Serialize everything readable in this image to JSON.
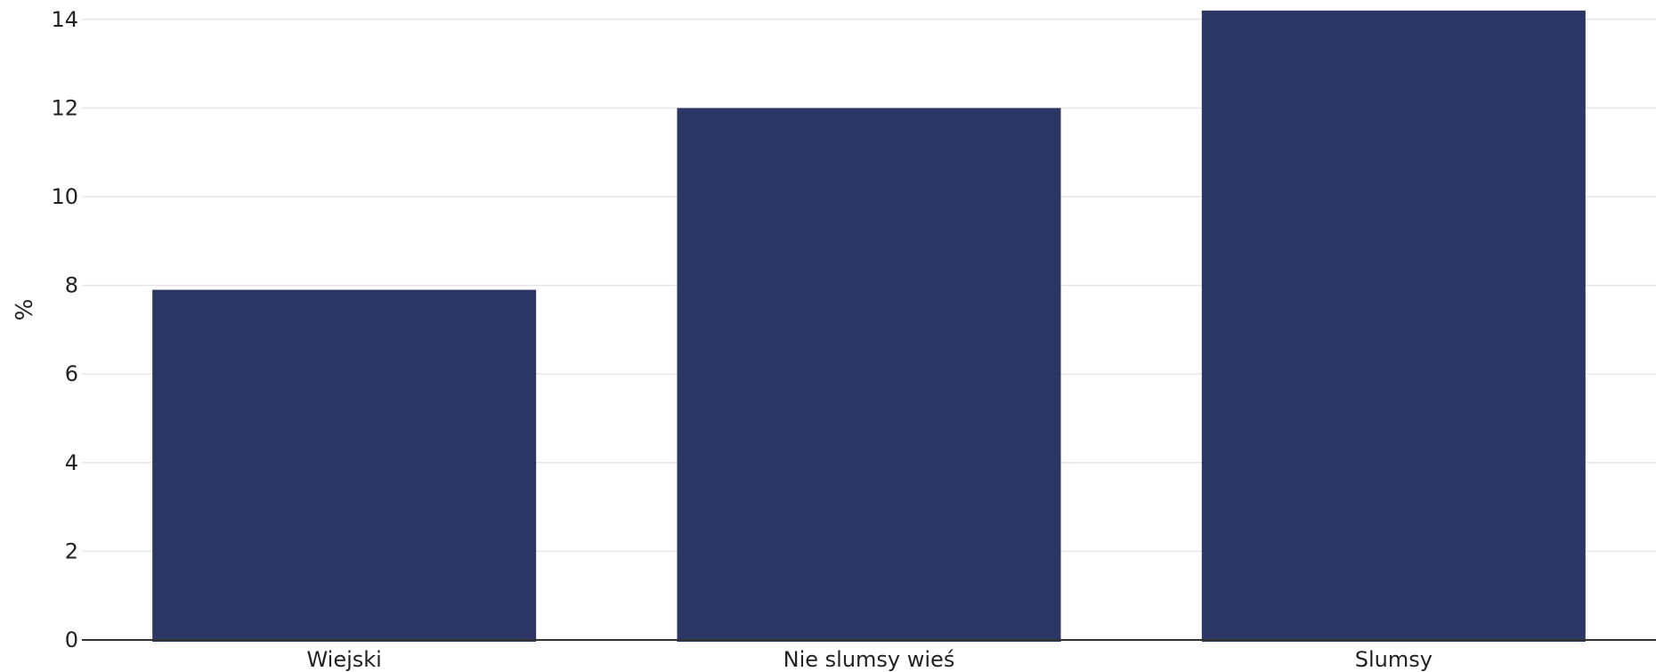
{
  "chart_data": {
    "type": "bar",
    "title": "",
    "xlabel": "",
    "ylabel": "%",
    "categories": [
      "Wiejski",
      "Nie slumsy wieś",
      "Slumsy"
    ],
    "values": [
      7.9,
      12.0,
      14.2
    ],
    "ylim": [
      0,
      14.2
    ],
    "yticks": [
      0,
      2,
      4,
      6,
      8,
      10,
      12,
      14
    ],
    "bar_color": "#2b3664",
    "grid": true,
    "legend": "none"
  }
}
